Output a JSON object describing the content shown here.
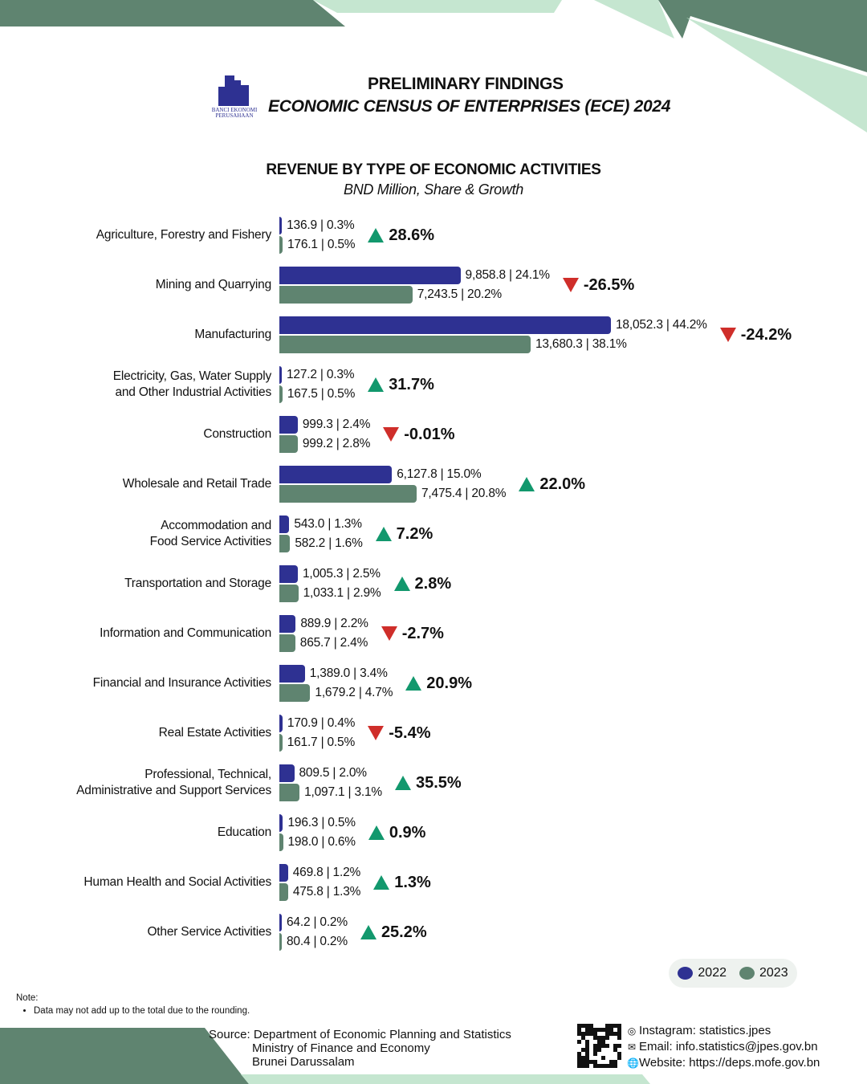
{
  "header": {
    "logo_text": "BANCI EKONOMI PERUSAHAAN 2024",
    "title": "PRELIMINARY FINDINGS",
    "subtitle": "ECONOMIC CENSUS OF ENTERPRISES (ECE) 2024"
  },
  "colors": {
    "y2022": "#2e3192",
    "y2023": "#5f8470",
    "up": "#12986d",
    "down": "#cf2e2a",
    "accent_light": "#c5e6d0",
    "accent_dark": "#5f8470"
  },
  "chart_data": {
    "type": "bar",
    "orientation": "horizontal",
    "title": "REVENUE BY TYPE OF ECONOMIC ACTIVITIES",
    "subtitle": "BND Million, Share & Growth",
    "legend": {
      "placement": "bottom-right",
      "entries": [
        "2022",
        "2023"
      ]
    },
    "categories": [
      "Agriculture, Forestry and Fishery",
      "Mining and Quarrying",
      "Manufacturing",
      "Electricity, Gas, Water Supply\nand Other Industrial Activities",
      "Construction",
      "Wholesale and Retail Trade",
      "Accommodation and\nFood Service Activities",
      "Transportation and Storage",
      "Information and Communication",
      "Financial and Insurance Activities",
      "Real Estate Activities",
      "Professional, Technical,\nAdministrative and Support Services",
      "Education",
      "Human Health and Social Activities",
      "Other Service Activities"
    ],
    "series": [
      {
        "name": "2022",
        "values": [
          136.9,
          9858.8,
          18052.3,
          127.2,
          999.3,
          6127.8,
          543.0,
          1005.3,
          889.9,
          1389.0,
          170.9,
          809.5,
          196.3,
          469.8,
          64.2
        ],
        "labels": [
          "136.9 | 0.3%",
          "9,858.8 | 24.1%",
          "18,052.3 | 44.2%",
          "127.2 | 0.3%",
          "999.3 | 2.4%",
          "6,127.8 | 15.0%",
          "543.0 | 1.3%",
          "1,005.3 | 2.5%",
          "889.9 | 2.2%",
          "1,389.0 | 3.4%",
          "170.9 | 0.4%",
          "809.5 | 2.0%",
          "196.3 | 0.5%",
          "469.8 | 1.2%",
          "64.2 | 0.2%"
        ]
      },
      {
        "name": "2023",
        "values": [
          176.1,
          7243.5,
          13680.3,
          167.5,
          999.2,
          7475.4,
          582.2,
          1033.1,
          865.7,
          1679.2,
          161.7,
          1097.1,
          198.0,
          475.8,
          80.4
        ],
        "labels": [
          "176.1 | 0.5%",
          "7,243.5 | 20.2%",
          "13,680.3 | 38.1%",
          "167.5 | 0.5%",
          "999.2 | 2.8%",
          "7,475.4 | 20.8%",
          "582.2 | 1.6%",
          "1,033.1 | 2.9%",
          "865.7 | 2.4%",
          "1,679.2 | 4.7%",
          "161.7 | 0.5%",
          "1,097.1 | 3.1%",
          "198.0 | 0.6%",
          "475.8 | 1.3%",
          "80.4 | 0.2%"
        ]
      }
    ],
    "growth": [
      "28.6%",
      "-26.5%",
      "-24.2%",
      "31.7%",
      "-0.01%",
      "22.0%",
      "7.2%",
      "2.8%",
      "-2.7%",
      "20.9%",
      "-5.4%",
      "35.5%",
      "0.9%",
      "1.3%",
      "25.2%"
    ]
  },
  "note": {
    "label": "Note:",
    "items": [
      "Data may not add up to the total due to the rounding."
    ]
  },
  "source": {
    "lines": [
      "Source: Department of Economic Planning and Statistics",
      "Ministry of Finance and Economy",
      "Brunei Darussalam"
    ]
  },
  "contact": {
    "instagram": "Instagram: statistics.jpes",
    "email": "Email: info.statistics@jpes.gov.bn",
    "website": "Website: https://deps.mofe.gov.bn"
  }
}
